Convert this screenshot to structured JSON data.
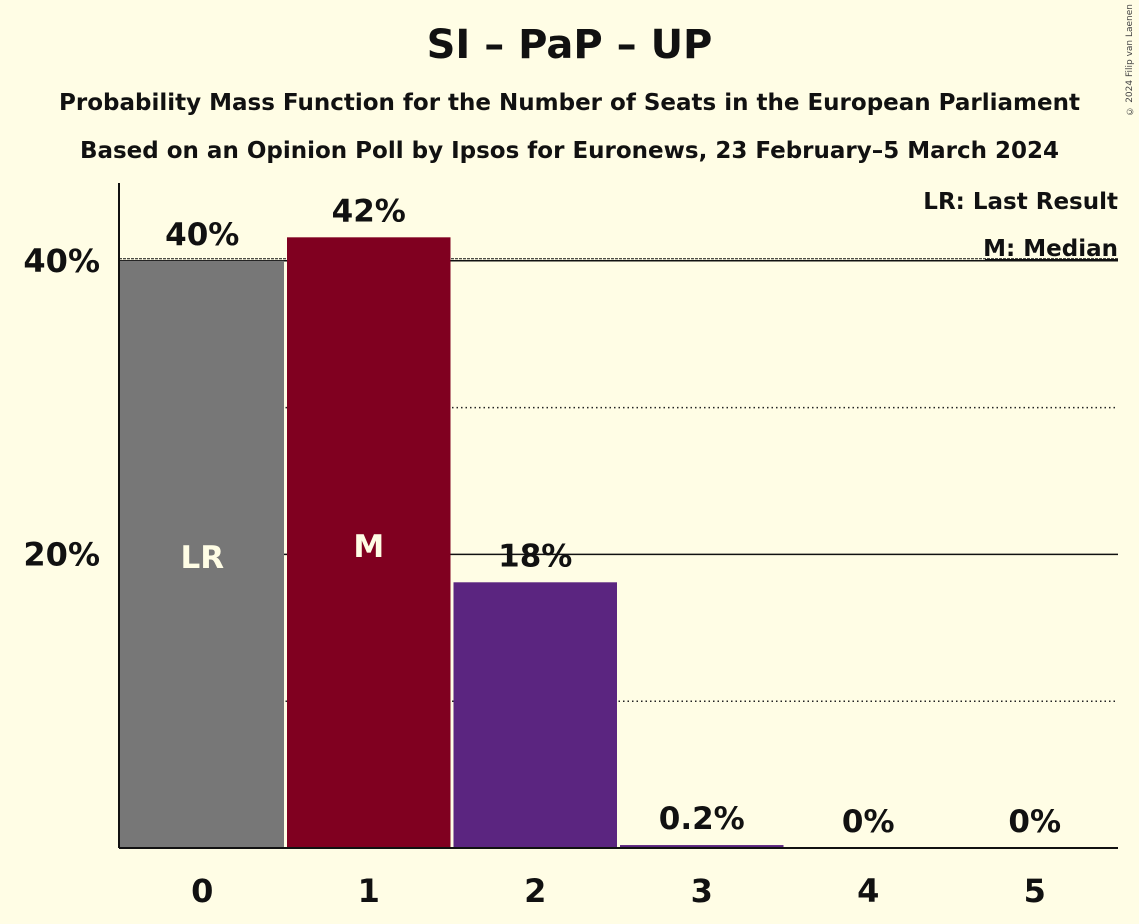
{
  "title": "SI – PaP – UP",
  "subtitle_1": "Probability Mass Function for the Number of Seats in the European Parliament",
  "subtitle_2": "Based on an Opinion Poll by Ipsos for Euronews, 23 February–5 March 2024",
  "copyright": "© 2024 Filip van Laenen",
  "legend": {
    "last_result": "LR: Last Result",
    "median": "M: Median"
  },
  "chart_data": {
    "type": "bar",
    "title": "SI – PaP – UP",
    "categories": [
      "0",
      "1",
      "2",
      "3",
      "4",
      "5"
    ],
    "values": [
      40,
      41.6,
      18.1,
      0.2,
      0,
      0
    ],
    "value_labels": [
      "40%",
      "42%",
      "18%",
      "0.2%",
      "0%",
      "0%"
    ],
    "bar_colors": [
      "#777777",
      "#800020",
      "#5B2580",
      "#5B2580",
      "#5B2580",
      "#5B2580"
    ],
    "bar_markers": [
      "LR",
      "M",
      "",
      "",
      "",
      ""
    ],
    "marker_colors": [
      "#FFFDE5",
      "#FFFDE5"
    ],
    "yticks": [
      20,
      40
    ],
    "ytick_labels": [
      "20%",
      "40%"
    ],
    "minor_gridlines": [
      10,
      30
    ],
    "ylim": [
      0,
      45.3
    ],
    "last_result_value": 40,
    "grid": true,
    "legend_position": "top-right"
  }
}
